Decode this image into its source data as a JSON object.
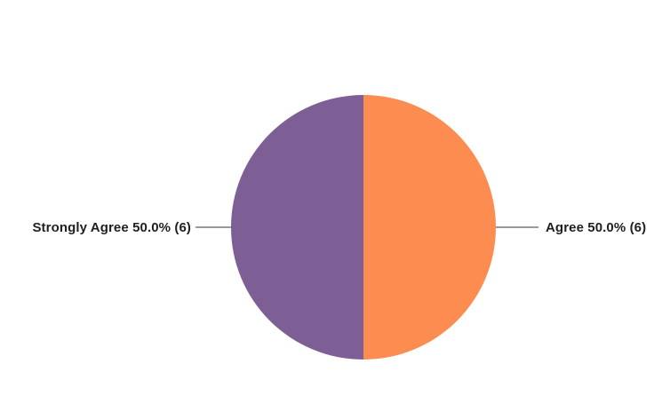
{
  "chart_data": {
    "type": "pie",
    "title": "",
    "legend_position": "none",
    "labels_style": "outside-with-leader-lines",
    "start_angle_deg": 0,
    "direction": "clockwise",
    "background_color": "#FFFFFF",
    "leader_line_color": "#999999",
    "label_text_color": "#1F1F1F",
    "slices": [
      {
        "id": "agree",
        "label": "Agree",
        "value": 6,
        "percent": 50.0,
        "display": "Agree 50.0% (6)",
        "color": "#FC8C50",
        "position": "right"
      },
      {
        "id": "strongly-agree",
        "label": "Strongly Agree",
        "value": 6,
        "percent": 50.0,
        "display": "Strongly Agree 50.0% (6)",
        "color": "#7D5F96",
        "position": "left"
      }
    ]
  }
}
